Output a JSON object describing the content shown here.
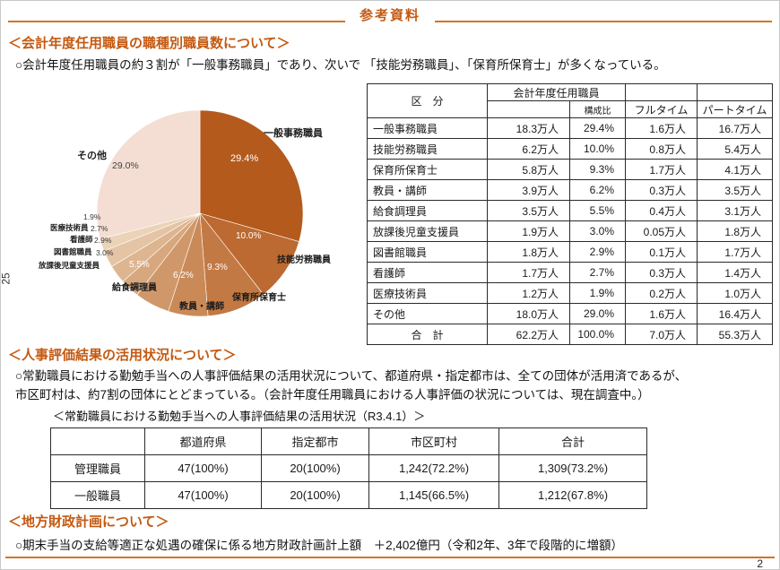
{
  "page": {
    "title": "参考資料",
    "page_number": "2",
    "side_page_number": "25"
  },
  "sections": {
    "jobtype": {
      "heading": "＜会計年度任用職員の職種別職員数について＞",
      "body": "○会計年度任用職員の約３割が「一般事務職員」であり、次いで 「技能労務職員」、「保育所保育士」が多くなっている。",
      "table": {
        "col_category": "区　分",
        "group_label": "会計年度任用職員",
        "col_ratio": "構成比",
        "col_fulltime": "フルタイム",
        "col_parttime": "パートタイム",
        "rows": [
          {
            "label": "一般事務職員",
            "count": "18.3万人",
            "ratio": "29.4%",
            "full": "1.6万人",
            "part": "16.7万人"
          },
          {
            "label": "技能労務職員",
            "count": "6.2万人",
            "ratio": "10.0%",
            "full": "0.8万人",
            "part": "5.4万人"
          },
          {
            "label": "保育所保育士",
            "count": "5.8万人",
            "ratio": "9.3%",
            "full": "1.7万人",
            "part": "4.1万人"
          },
          {
            "label": "教員・講師",
            "count": "3.9万人",
            "ratio": "6.2%",
            "full": "0.3万人",
            "part": "3.5万人"
          },
          {
            "label": "給食調理員",
            "count": "3.5万人",
            "ratio": "5.5%",
            "full": "0.4万人",
            "part": "3.1万人"
          },
          {
            "label": "放課後児童支援員",
            "count": "1.9万人",
            "ratio": "3.0%",
            "full": "0.05万人",
            "part": "1.8万人"
          },
          {
            "label": "図書館職員",
            "count": "1.8万人",
            "ratio": "2.9%",
            "full": "0.1万人",
            "part": "1.7万人"
          },
          {
            "label": "看護師",
            "count": "1.7万人",
            "ratio": "2.7%",
            "full": "0.3万人",
            "part": "1.4万人"
          },
          {
            "label": "医療技術員",
            "count": "1.2万人",
            "ratio": "1.9%",
            "full": "0.2万人",
            "part": "1.0万人"
          },
          {
            "label": "その他",
            "count": "18.0万人",
            "ratio": "29.0%",
            "full": "1.6万人",
            "part": "16.4万人"
          }
        ],
        "total": {
          "label": "合　計",
          "count": "62.2万人",
          "ratio": "100.0%",
          "full": "7.0万人",
          "part": "55.3万人"
        }
      }
    },
    "evaluation": {
      "heading": "＜人事評価結果の活用状況について＞",
      "body": "○常勤職員における勤勉手当への人事評価結果の活用状況について、都道府県・指定都市は、全ての団体が活用済であるが、\n市区町村は、約7割の団体にとどまっている。（会計年度任用職員における人事評価の状況については、現在調査中。）",
      "caption": "＜常勤職員における勤勉手当への人事評価結果の活用状況（R3.4.1）＞",
      "table": {
        "headers": [
          "都道府県",
          "指定都市",
          "市区町村",
          "合計"
        ],
        "rows": [
          {
            "label": "管理職員",
            "values": [
              "47(100%)",
              "20(100%)",
              "1,242(72.2%)",
              "1,309(73.2%)"
            ]
          },
          {
            "label": "一般職員",
            "values": [
              "47(100%)",
              "20(100%)",
              "1,145(66.5%)",
              "1,212(67.8%)"
            ]
          }
        ]
      }
    },
    "fiscal": {
      "heading": "＜地方財政計画について＞",
      "body": "○期末手当の支給等適正な処遇の確保に係る地方財政計画計上額　＋2,402億円（令和2年、3年で段階的に増額）"
    }
  },
  "chart_data": {
    "type": "pie",
    "labels": [
      "一般事務職員",
      "技能労務職員",
      "保育所保育士",
      "教員・講師",
      "給食調理員",
      "放課後児童支援員",
      "図書館職員",
      "看護師",
      "医療技術員",
      "その他"
    ],
    "values": [
      29.4,
      10.0,
      9.3,
      6.2,
      5.5,
      3.0,
      2.9,
      2.7,
      1.9,
      29.0
    ],
    "pct_labels": [
      "29.4%",
      "10.0%",
      "9.3%",
      "6.2%",
      "5.5%",
      "3.0%",
      "2.9%",
      "2.7%",
      "1.9%",
      "29.0%"
    ],
    "colors": [
      "#b45a1d",
      "#bc6a31",
      "#c37943",
      "#ca8a58",
      "#d0986a",
      "#d7a77e",
      "#ddb590",
      "#e4c4a4",
      "#ebd3b8",
      "#f4ddd3"
    ],
    "start_angle_deg": 0,
    "direction": "clockwise",
    "legend_position": "around-slices"
  }
}
